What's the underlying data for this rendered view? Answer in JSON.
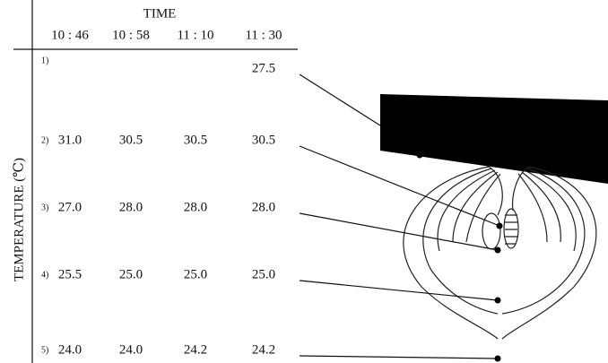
{
  "header": {
    "title": "TIME",
    "times": [
      "10 : 46",
      "10 : 58",
      "11 : 10",
      "11 : 30"
    ]
  },
  "axis_label": "TEMPERATURE (℃)",
  "table": {
    "rows": [
      {
        "label": "1)",
        "values": [
          null,
          null,
          null,
          "27.5"
        ]
      },
      {
        "label": "2)",
        "values": [
          "31.0",
          "30.5",
          "30.5",
          "30.5"
        ]
      },
      {
        "label": "3)",
        "values": [
          "27.0",
          "28.0",
          "28.0",
          "28.0"
        ]
      },
      {
        "label": "4)",
        "values": [
          "25.5",
          "25.0",
          "25.0",
          "25.0"
        ]
      },
      {
        "label": "5)",
        "values": [
          "24.0",
          "24.0",
          "24.2",
          "24.2"
        ]
      }
    ]
  }
}
